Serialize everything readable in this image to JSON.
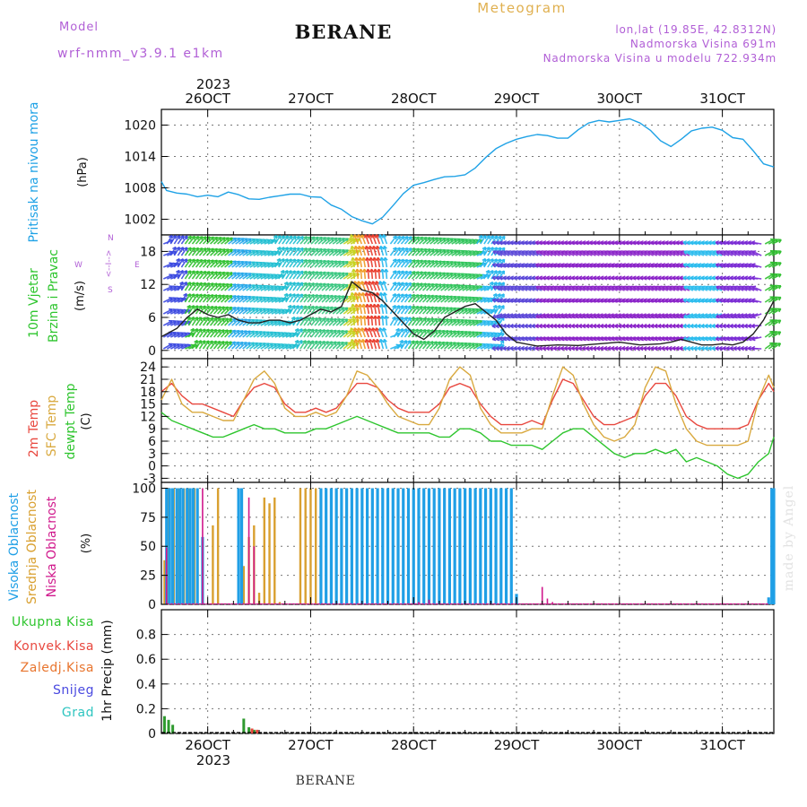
{
  "header": {
    "model_label": "Model",
    "model_name": "wrf-nmm_v3.9.1  e1km",
    "station": "BERANE",
    "product": "Meteogram",
    "lonlat": "lon,lat (19.85E, 42.8312N)",
    "elevation": "Nadmorska Visina 691m",
    "model_elevation": "Nadmorska Visina u modelu 722.934m",
    "footer_station": "BERANE",
    "watermark": "made by Angel"
  },
  "colors": {
    "pressure": "#1fa2e6",
    "temp2m": "#e8473e",
    "sfc_temp": "#d9a93f",
    "dewpoint": "#2ec52e",
    "high_cloud": "#1f9fe6",
    "mid_cloud": "#d9a030",
    "low_cloud": "#d0188c",
    "wind_speed": "#222222",
    "gust": "#ee4422",
    "precip_total": "#2f9a2f",
    "precip_conv": "#e8473e",
    "precip_frz": "#e8752e",
    "snow": "#4a4ae0",
    "hail": "#2ec5c0",
    "header_purple": "#b15fd6",
    "header_orange": "#e0b050"
  },
  "time_axis": {
    "year": "2023",
    "days": [
      "26OCT",
      "27OCT",
      "28OCT",
      "29OCT",
      "30OCT",
      "31OCT"
    ],
    "day_positions": [
      26,
      27,
      28,
      29,
      30,
      31
    ],
    "start": 25.55,
    "end": 31.5
  },
  "chart_data": [
    {
      "type": "line",
      "id": "pressure",
      "ylabel_colored": "Pritisak na nivou mora",
      "ylabel_unit": "(hPa)",
      "ylim": [
        999,
        1023
      ],
      "yticks": [
        1002,
        1008,
        1014,
        1020
      ],
      "grid": true,
      "series": [
        {
          "x": [
            25.55,
            25.6,
            25.7,
            25.8,
            25.9,
            26.0,
            26.1,
            26.2,
            26.3,
            26.4,
            26.5,
            26.6,
            26.7,
            26.8,
            26.9,
            27.0,
            27.1,
            27.2,
            27.3,
            27.4,
            27.5,
            27.6,
            27.7,
            27.8,
            27.9,
            28.0,
            28.1,
            28.2,
            28.3,
            28.4,
            28.5,
            28.6,
            28.7,
            28.8,
            28.9,
            29.0,
            29.1,
            29.2,
            29.3,
            29.4,
            29.5,
            29.6,
            29.7,
            29.8,
            29.9,
            30.0,
            30.1,
            30.2,
            30.3,
            30.4,
            30.5,
            30.6,
            30.7,
            30.8,
            30.9,
            31.0,
            31.1,
            31.2,
            31.3,
            31.4,
            31.5
          ],
          "y": [
            1009.2,
            1007.5,
            1007.0,
            1006.8,
            1006.3,
            1006.6,
            1006.3,
            1007.2,
            1006.7,
            1005.9,
            1005.8,
            1006.2,
            1006.5,
            1006.8,
            1006.8,
            1006.3,
            1006.2,
            1004.7,
            1003.9,
            1002.5,
            1001.7,
            1001.1,
            1002.4,
            1004.6,
            1006.9,
            1008.5,
            1009.0,
            1009.6,
            1010.1,
            1010.2,
            1010.5,
            1011.8,
            1013.8,
            1015.5,
            1016.5,
            1017.3,
            1017.8,
            1018.2,
            1018.0,
            1017.5,
            1017.5,
            1019.1,
            1020.4,
            1020.9,
            1020.6,
            1020.9,
            1021.2,
            1020.4,
            1019.0,
            1017.0,
            1015.9,
            1017.3,
            1018.9,
            1019.4,
            1019.6,
            1019.0,
            1017.6,
            1017.3,
            1015.1,
            1012.6,
            1012.0
          ]
        }
      ]
    },
    {
      "type": "line",
      "id": "wind",
      "ylabel_colored_1": "10m Vjetar",
      "ylabel_colored_2": "Brzina i Pravac",
      "ylabel_unit": "(m/s)",
      "compass": [
        "W",
        "<--I-->",
        "E",
        "N",
        "S"
      ],
      "ylim": [
        -1.5,
        21
      ],
      "yticks": [
        0,
        6,
        12,
        18
      ],
      "grid": true,
      "series": [
        {
          "name": "speed",
          "x": [
            25.55,
            25.7,
            25.8,
            25.9,
            26.0,
            26.1,
            26.2,
            26.3,
            26.4,
            26.5,
            26.6,
            26.7,
            26.8,
            26.9,
            27.0,
            27.1,
            27.2,
            27.3,
            27.4,
            27.5,
            27.6,
            27.7,
            27.8,
            27.9,
            28.0,
            28.1,
            28.2,
            28.3,
            28.4,
            28.5,
            28.6,
            28.7,
            28.8,
            28.9,
            29.0,
            29.2,
            29.4,
            29.6,
            29.8,
            30.0,
            30.2,
            30.4,
            30.5,
            30.6,
            30.7,
            30.8,
            30.9,
            31.0,
            31.1,
            31.2,
            31.3,
            31.4,
            31.5
          ],
          "y": [
            2.5,
            4.0,
            6.0,
            7.5,
            6.5,
            6.0,
            6.5,
            5.5,
            5.0,
            5.0,
            5.5,
            5.5,
            5.0,
            5.5,
            6.5,
            7.5,
            7.0,
            8.0,
            12.5,
            11.0,
            10.5,
            9.0,
            7.0,
            5.0,
            3.0,
            2.0,
            3.5,
            6.0,
            7.0,
            8.0,
            8.5,
            7.0,
            5.5,
            3.0,
            1.5,
            0.8,
            1.0,
            0.9,
            1.2,
            1.5,
            1.0,
            1.2,
            1.5,
            2.0,
            1.5,
            1.0,
            1.0,
            1.2,
            1.0,
            1.5,
            3.0,
            5.5,
            9.0
          ]
        }
      ]
    },
    {
      "type": "line",
      "id": "temperature",
      "ylabel_colored_1": "2m Temp",
      "ylabel_colored_2": "SFC Temp",
      "ylabel_colored_3": "dewpt Temp",
      "ylabel_unit": "(C)",
      "ylim": [
        -4,
        26
      ],
      "yticks": [
        -3,
        0,
        3,
        6,
        9,
        12,
        15,
        18,
        21,
        24
      ],
      "grid": true,
      "series": [
        {
          "name": "temp2m",
          "x": [
            25.55,
            25.65,
            25.75,
            25.85,
            25.95,
            26.05,
            26.15,
            26.25,
            26.35,
            26.45,
            26.55,
            26.65,
            26.75,
            26.85,
            26.95,
            27.05,
            27.15,
            27.25,
            27.35,
            27.45,
            27.55,
            27.65,
            27.75,
            27.85,
            27.95,
            28.05,
            28.15,
            28.25,
            28.35,
            28.45,
            28.55,
            28.65,
            28.75,
            28.85,
            28.95,
            29.05,
            29.15,
            29.25,
            29.35,
            29.45,
            29.55,
            29.65,
            29.75,
            29.85,
            29.95,
            30.05,
            30.15,
            30.25,
            30.35,
            30.45,
            30.55,
            30.65,
            30.75,
            30.85,
            30.95,
            31.05,
            31.15,
            31.25,
            31.35,
            31.45,
            31.5
          ],
          "y": [
            18,
            20,
            17,
            15,
            15,
            14,
            13,
            12,
            16,
            19,
            20,
            19,
            15,
            13,
            13,
            14,
            13,
            14,
            17,
            20,
            20,
            19,
            16,
            14,
            13,
            13,
            13,
            15,
            19,
            20,
            19,
            15,
            12,
            10,
            10,
            10,
            11,
            10,
            16,
            21,
            20,
            16,
            12,
            10,
            10,
            11,
            12,
            17,
            20,
            20,
            17,
            12,
            10,
            9,
            9,
            9,
            9,
            10,
            16,
            20,
            18
          ]
        },
        {
          "name": "sfc_temp",
          "x": [
            25.55,
            25.65,
            25.75,
            25.85,
            25.95,
            26.05,
            26.15,
            26.25,
            26.35,
            26.45,
            26.55,
            26.65,
            26.75,
            26.85,
            26.95,
            27.05,
            27.15,
            27.25,
            27.35,
            27.45,
            27.55,
            27.65,
            27.75,
            27.85,
            27.95,
            28.05,
            28.15,
            28.25,
            28.35,
            28.45,
            28.55,
            28.65,
            28.75,
            28.85,
            28.95,
            29.05,
            29.15,
            29.25,
            29.35,
            29.45,
            29.55,
            29.65,
            29.75,
            29.85,
            29.95,
            30.05,
            30.15,
            30.25,
            30.35,
            30.45,
            30.55,
            30.65,
            30.75,
            30.85,
            30.95,
            31.05,
            31.15,
            31.25,
            31.35,
            31.45,
            31.5
          ],
          "y": [
            16,
            21,
            15,
            13,
            13,
            12,
            11,
            11,
            16,
            21,
            23,
            20,
            14,
            12,
            12,
            13,
            12,
            13,
            17,
            23,
            22,
            19,
            15,
            12,
            11,
            10,
            10,
            14,
            21,
            24,
            22,
            14,
            10,
            8,
            8,
            8,
            9,
            9,
            17,
            24,
            22,
            15,
            10,
            7,
            6,
            7,
            10,
            19,
            24,
            23,
            15,
            9,
            6,
            5,
            5,
            5,
            5,
            6,
            16,
            22,
            19
          ]
        },
        {
          "name": "dewpoint",
          "x": [
            25.55,
            25.65,
            25.75,
            25.85,
            25.95,
            26.05,
            26.15,
            26.25,
            26.35,
            26.45,
            26.55,
            26.65,
            26.75,
            26.85,
            26.95,
            27.05,
            27.15,
            27.25,
            27.35,
            27.45,
            27.55,
            27.65,
            27.75,
            27.85,
            27.95,
            28.05,
            28.15,
            28.25,
            28.35,
            28.45,
            28.55,
            28.65,
            28.75,
            28.85,
            28.95,
            29.05,
            29.15,
            29.25,
            29.35,
            29.45,
            29.55,
            29.65,
            29.75,
            29.85,
            29.95,
            30.05,
            30.15,
            30.25,
            30.35,
            30.45,
            30.55,
            30.65,
            30.75,
            30.85,
            30.95,
            31.05,
            31.15,
            31.25,
            31.35,
            31.45,
            31.5
          ],
          "y": [
            13,
            11,
            10,
            9,
            8,
            7,
            7,
            8,
            9,
            10,
            9,
            9,
            8,
            8,
            8,
            9,
            9,
            10,
            11,
            12,
            11,
            10,
            9,
            8,
            8,
            8,
            8,
            7,
            7,
            9,
            9,
            8,
            6,
            6,
            5,
            5,
            5,
            4,
            6,
            8,
            9,
            9,
            7,
            5,
            3,
            2,
            3,
            3,
            4,
            3,
            4,
            1,
            2,
            1,
            0,
            -2,
            -3,
            -2,
            1,
            3,
            7
          ]
        }
      ]
    },
    {
      "type": "bar",
      "id": "clouds",
      "ylabel_colored_1": "Visoka Oblacnost",
      "ylabel_colored_2": "Srednja Oblacnost",
      "ylabel_colored_3": "Niska Oblacnost",
      "ylabel_unit": "(%)",
      "ylim": [
        0,
        105
      ],
      "yticks": [
        0,
        25,
        50,
        75,
        100
      ],
      "grid": true,
      "series": [
        {
          "name": "high",
          "x": [
            25.6,
            25.63,
            25.66,
            25.7,
            25.73,
            25.76,
            25.8,
            25.83,
            25.86,
            25.9,
            25.95,
            26.3,
            26.33,
            27.1,
            27.15,
            27.2,
            27.25,
            27.3,
            27.35,
            27.4,
            27.45,
            27.5,
            27.55,
            27.6,
            27.65,
            27.7,
            27.75,
            27.8,
            27.85,
            27.9,
            27.95,
            28.0,
            28.05,
            28.1,
            28.15,
            28.2,
            28.25,
            28.3,
            28.35,
            28.4,
            28.45,
            28.5,
            28.55,
            28.6,
            28.65,
            28.7,
            28.75,
            28.8,
            28.85,
            28.9,
            28.95,
            29.0,
            31.45,
            31.48,
            31.5
          ],
          "y": [
            100,
            100,
            100,
            100,
            100,
            100,
            100,
            100,
            100,
            100,
            58,
            100,
            100,
            100,
            100,
            100,
            100,
            100,
            100,
            100,
            100,
            100,
            100,
            100,
            100,
            100,
            100,
            100,
            100,
            100,
            100,
            100,
            100,
            100,
            100,
            100,
            100,
            100,
            100,
            100,
            100,
            100,
            100,
            100,
            100,
            100,
            100,
            100,
            100,
            100,
            100,
            9,
            6,
            100,
            100
          ]
        },
        {
          "name": "mid",
          "x": [
            25.58,
            25.62,
            25.67,
            25.72,
            25.77,
            25.82,
            25.87,
            26.05,
            26.1,
            26.35,
            26.4,
            26.45,
            26.5,
            26.55,
            26.6,
            26.65,
            26.7,
            26.9,
            26.95,
            27.0,
            27.05,
            27.1,
            27.15,
            27.2,
            27.25,
            27.3,
            27.35,
            27.4,
            27.45,
            27.5,
            27.55,
            27.6
          ],
          "y": [
            38,
            100,
            100,
            100,
            100,
            100,
            100,
            68,
            100,
            33,
            58,
            68,
            10,
            92,
            87,
            92,
            2,
            100,
            100,
            100,
            100,
            100,
            100,
            100,
            100,
            100,
            100,
            100,
            100,
            100,
            100,
            100
          ]
        },
        {
          "name": "low",
          "x": [
            25.6,
            25.95,
            26.4,
            26.45,
            28.05,
            28.15,
            29.25,
            29.3,
            29.35
          ],
          "y": [
            49,
            100,
            92,
            50,
            2,
            4,
            15,
            5,
            2
          ]
        }
      ]
    },
    {
      "type": "bar",
      "id": "precip",
      "ylabel_unit": "1hr Precip (mm)",
      "legend": [
        "Ukupna Kisa",
        "Konvek.Kisa",
        "Zaledj.Kisa",
        "Snijeg",
        "Grad"
      ],
      "ylim": [
        0,
        1.0
      ],
      "yticks": [
        0,
        0.2,
        0.4,
        0.6,
        0.8
      ],
      "grid": true,
      "series": [
        {
          "name": "total",
          "x": [
            25.58,
            25.62,
            25.66,
            26.35,
            26.4,
            26.45
          ],
          "y": [
            0.14,
            0.11,
            0.07,
            0.12,
            0.05,
            0.03
          ]
        },
        {
          "name": "convective",
          "x": [
            26.43,
            26.48
          ],
          "y": [
            0.04,
            0.03
          ]
        }
      ]
    }
  ]
}
